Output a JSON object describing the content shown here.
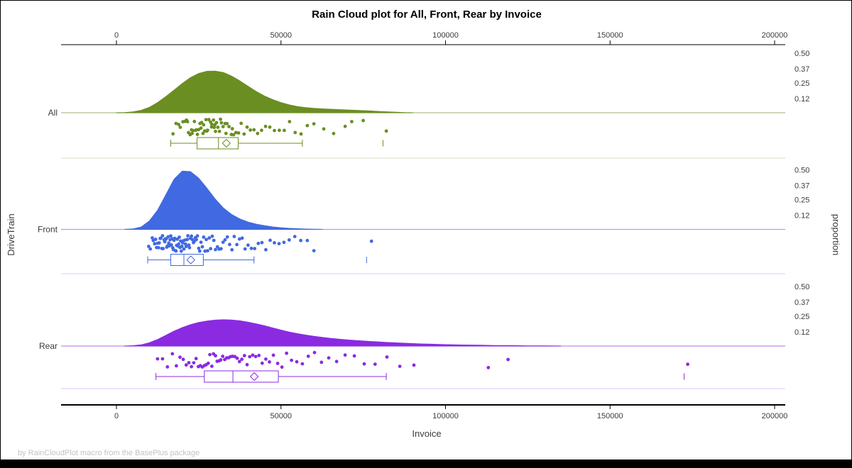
{
  "chart_data": {
    "type": "raincloud",
    "title": "Rain Cloud plot for All, Front, Rear by Invoice",
    "xlabel": "Invoice",
    "ylabel_left": "DriveTrain",
    "ylabel_right": "proportion",
    "footnote": "by RainCloudPlot macro from the BasePlus package",
    "x_axis": {
      "ticks": [
        0,
        50000,
        100000,
        150000,
        200000
      ],
      "tick_labels": [
        "0",
        "50000",
        "100000",
        "150000",
        "200000"
      ],
      "lim": [
        -16800,
        203200
      ],
      "shown_on": "top and bottom"
    },
    "proportion_axis": {
      "ticks": [
        0.5,
        0.37,
        0.25,
        0.12
      ],
      "tick_labels": [
        "0.50",
        "0.37",
        "0.25",
        "0.12"
      ]
    },
    "legend": "none",
    "grid": "off",
    "groups": [
      {
        "name": "All",
        "color": "#6B8E23",
        "density": {
          "x": [
            0,
            2500,
            5000,
            7500,
            10000,
            12500,
            15000,
            17500,
            20000,
            22500,
            25000,
            27500,
            30000,
            32500,
            35000,
            37500,
            40000,
            42500,
            45000,
            47500,
            50000,
            52500,
            55000,
            57500,
            60000,
            62500,
            65000,
            67500,
            70000,
            72500,
            75000,
            77500,
            80000,
            82500,
            85000,
            87500,
            90000
          ],
          "proportion": [
            0,
            0.002,
            0.008,
            0.02,
            0.045,
            0.085,
            0.135,
            0.19,
            0.245,
            0.295,
            0.33,
            0.348,
            0.35,
            0.338,
            0.308,
            0.268,
            0.222,
            0.178,
            0.14,
            0.11,
            0.086,
            0.066,
            0.052,
            0.043,
            0.037,
            0.033,
            0.03,
            0.027,
            0.024,
            0.021,
            0.018,
            0.015,
            0.011,
            0.007,
            0.004,
            0.001,
            0
          ]
        },
        "points": [
          17200,
          18100,
          18900,
          19400,
          20200,
          20800,
          21300,
          21600,
          21900,
          22400,
          22800,
          23000,
          23300,
          23700,
          24100,
          24300,
          24600,
          25000,
          25400,
          25700,
          25900,
          26300,
          26500,
          26800,
          27200,
          27400,
          27700,
          28100,
          28600,
          28900,
          29000,
          29500,
          29700,
          29900,
          30100,
          30400,
          30800,
          31300,
          31600,
          31900,
          32400,
          33000,
          33300,
          33600,
          34200,
          34900,
          35200,
          35600,
          36300,
          37100,
          37900,
          38800,
          39700,
          40700,
          41800,
          42900,
          44100,
          45300,
          46600,
          48000,
          49500,
          51000,
          52600,
          54300,
          56100,
          58000,
          60000,
          63000,
          66000,
          69500,
          71500,
          75000,
          82000
        ],
        "box": {
          "whisker_low": 16500,
          "q1": 24500,
          "median": 31000,
          "q3": 37000,
          "whisker_high": 56500,
          "mean": 33400,
          "outliers": [
            81000
          ]
        }
      },
      {
        "name": "Front",
        "color": "#4169E1",
        "density": {
          "x": [
            2500,
            5000,
            7500,
            10000,
            12500,
            15000,
            17500,
            20000,
            22500,
            25000,
            27500,
            30000,
            32500,
            35000,
            37500,
            40000,
            42500,
            45000,
            47500,
            50000,
            52500,
            55000,
            57500,
            60000,
            62500
          ],
          "proportion": [
            0,
            0.004,
            0.02,
            0.07,
            0.16,
            0.29,
            0.42,
            0.49,
            0.485,
            0.43,
            0.345,
            0.255,
            0.18,
            0.125,
            0.088,
            0.062,
            0.044,
            0.031,
            0.021,
            0.014,
            0.009,
            0.006,
            0.003,
            0.001,
            0
          ]
        },
        "points": [
          9800,
          10300,
          10900,
          11200,
          11600,
          11900,
          12200,
          12500,
          12800,
          13000,
          13300,
          13500,
          13800,
          14000,
          14200,
          14500,
          14700,
          14900,
          15100,
          15300,
          15500,
          15700,
          15900,
          16100,
          16300,
          16500,
          16700,
          16900,
          17100,
          17300,
          17500,
          17700,
          17900,
          18100,
          18300,
          18500,
          18700,
          18900,
          19100,
          19300,
          19500,
          19700,
          19900,
          20100,
          20300,
          20500,
          20800,
          21000,
          21200,
          21500,
          21700,
          22000,
          22200,
          22500,
          22800,
          23100,
          23400,
          23700,
          24000,
          24300,
          24600,
          25000,
          25300,
          25700,
          26100,
          26500,
          26900,
          27300,
          27700,
          28200,
          28600,
          29100,
          29600,
          30100,
          30700,
          31200,
          31800,
          32400,
          33000,
          33700,
          34400,
          35100,
          35800,
          36600,
          37400,
          38200,
          39100,
          40000,
          41000,
          42000,
          43100,
          44200,
          45400,
          46700,
          48000,
          49400,
          50900,
          52500,
          54200,
          56000,
          58000,
          60000,
          77500
        ],
        "box": {
          "whisker_low": 9500,
          "q1": 16500,
          "median": 20500,
          "q3": 26400,
          "whisker_high": 41800,
          "mean": 22600,
          "outliers": [
            76000
          ]
        }
      },
      {
        "name": "Rear",
        "color": "#8A2BE2",
        "density": {
          "x": [
            2500,
            5000,
            7500,
            10000,
            12500,
            15000,
            17500,
            20000,
            22500,
            25000,
            27500,
            30000,
            32500,
            35000,
            37500,
            40000,
            42500,
            45000,
            47500,
            50000,
            52500,
            55000,
            57500,
            60000,
            62500,
            65000,
            67500,
            70000,
            72500,
            75000,
            77500,
            80000,
            82500,
            85000,
            87500,
            90000,
            92500,
            95000,
            100000,
            105000,
            110000,
            115000,
            120000,
            125000,
            130000,
            135000
          ],
          "proportion": [
            0,
            0.003,
            0.01,
            0.028,
            0.055,
            0.09,
            0.125,
            0.155,
            0.18,
            0.198,
            0.21,
            0.218,
            0.221,
            0.219,
            0.212,
            0.2,
            0.186,
            0.17,
            0.152,
            0.134,
            0.118,
            0.104,
            0.092,
            0.082,
            0.073,
            0.065,
            0.058,
            0.052,
            0.047,
            0.042,
            0.038,
            0.034,
            0.03,
            0.027,
            0.024,
            0.021,
            0.018,
            0.016,
            0.012,
            0.009,
            0.007,
            0.005,
            0.004,
            0.002,
            0.001,
            0
          ]
        },
        "points": [
          12500,
          14000,
          15500,
          17000,
          18200,
          19300,
          20300,
          21200,
          22000,
          22800,
          23500,
          24200,
          24900,
          25500,
          26100,
          26700,
          27300,
          27900,
          28400,
          29000,
          29500,
          30100,
          30600,
          31200,
          31700,
          32300,
          32900,
          33500,
          34100,
          34700,
          35300,
          36000,
          36700,
          37400,
          38100,
          38900,
          39700,
          40500,
          41400,
          42300,
          43300,
          44300,
          45400,
          46500,
          47700,
          49000,
          50300,
          51700,
          53200,
          54800,
          56500,
          58300,
          60200,
          62300,
          64500,
          66900,
          69500,
          72300,
          75300,
          78600,
          82200,
          86100,
          90400,
          113000,
          119000,
          173600
        ],
        "box": {
          "whisker_low": 12000,
          "q1": 26700,
          "median": 35400,
          "q3": 49200,
          "whisker_high": 82000,
          "mean": 41900,
          "outliers": [
            172500
          ]
        }
      }
    ]
  }
}
